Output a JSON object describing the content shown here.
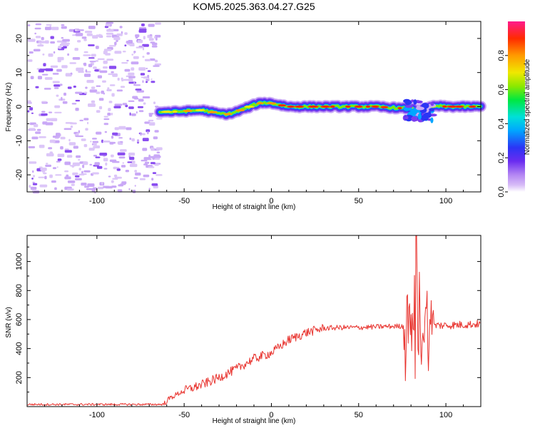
{
  "title": "KOM5.2025.363.04.27.G25",
  "colors": {
    "snr_line": "#e8332e",
    "axis": "#000000",
    "background": "#ffffff"
  },
  "chart_data": [
    {
      "type": "heatmap",
      "name": "spectrogram",
      "xlabel": "Height of straight line (km)",
      "ylabel": "Frequency (Hz)",
      "xlim": [
        -140,
        120
      ],
      "ylim": [
        -25,
        25
      ],
      "xticks": [
        -100,
        -50,
        0,
        50,
        100
      ],
      "yticks": [
        -20,
        -10,
        0,
        10,
        20
      ],
      "ridge": {
        "x": [
          -64,
          -60,
          -55,
          -50,
          -45,
          -40,
          -35,
          -30,
          -25,
          -20,
          -15,
          -10,
          -5,
          0,
          5,
          10,
          20,
          30,
          40,
          50,
          60,
          70,
          75,
          78,
          82,
          86,
          90,
          92,
          95,
          100,
          110,
          120
        ],
        "freq": [
          -1.5,
          -1.5,
          -1.5,
          -1.3,
          -1.2,
          -1.0,
          -1.5,
          -2.0,
          -2.2,
          -1.5,
          -0.5,
          0.5,
          1.2,
          1.0,
          0.5,
          0,
          0,
          0,
          0,
          0,
          0,
          -0.3,
          -0.5,
          -0.5,
          -0.8,
          -1.0,
          -0.3,
          0,
          0.2,
          0,
          0,
          0
        ]
      },
      "noise_region_x": [
        -140,
        -64
      ]
    },
    {
      "type": "colorbar",
      "name": "amplitude-colorbar",
      "label": "Normalized spectral amplitude",
      "range": [
        0,
        1
      ],
      "ticks": [
        "0.0",
        "0.2",
        "0.4",
        "0.6",
        "0.8"
      ]
    },
    {
      "type": "line",
      "name": "snr",
      "xlabel": "Height of straight line (km)",
      "ylabel": "SNR (v/v)",
      "xlim": [
        -140,
        120
      ],
      "ylim": [
        0,
        1180
      ],
      "xticks": [
        -100,
        -50,
        0,
        50,
        100
      ],
      "yticks": [
        200,
        400,
        600,
        800,
        1000
      ],
      "trend": {
        "x": [
          -140,
          -62,
          -58,
          -50,
          -40,
          -30,
          -20,
          -10,
          0,
          10,
          20,
          30,
          40,
          50,
          60,
          75,
          80,
          85,
          90,
          95,
          100,
          110,
          120
        ],
        "y": [
          15,
          15,
          60,
          110,
          150,
          200,
          260,
          330,
          370,
          460,
          510,
          540,
          545,
          545,
          550,
          555,
          560,
          560,
          560,
          560,
          560,
          565,
          570
        ]
      },
      "noise_amplitude": 18,
      "burst_region": [
        76,
        93
      ],
      "burst_amplitude": 330,
      "peak": {
        "x": 83,
        "y": 1180
      }
    }
  ]
}
